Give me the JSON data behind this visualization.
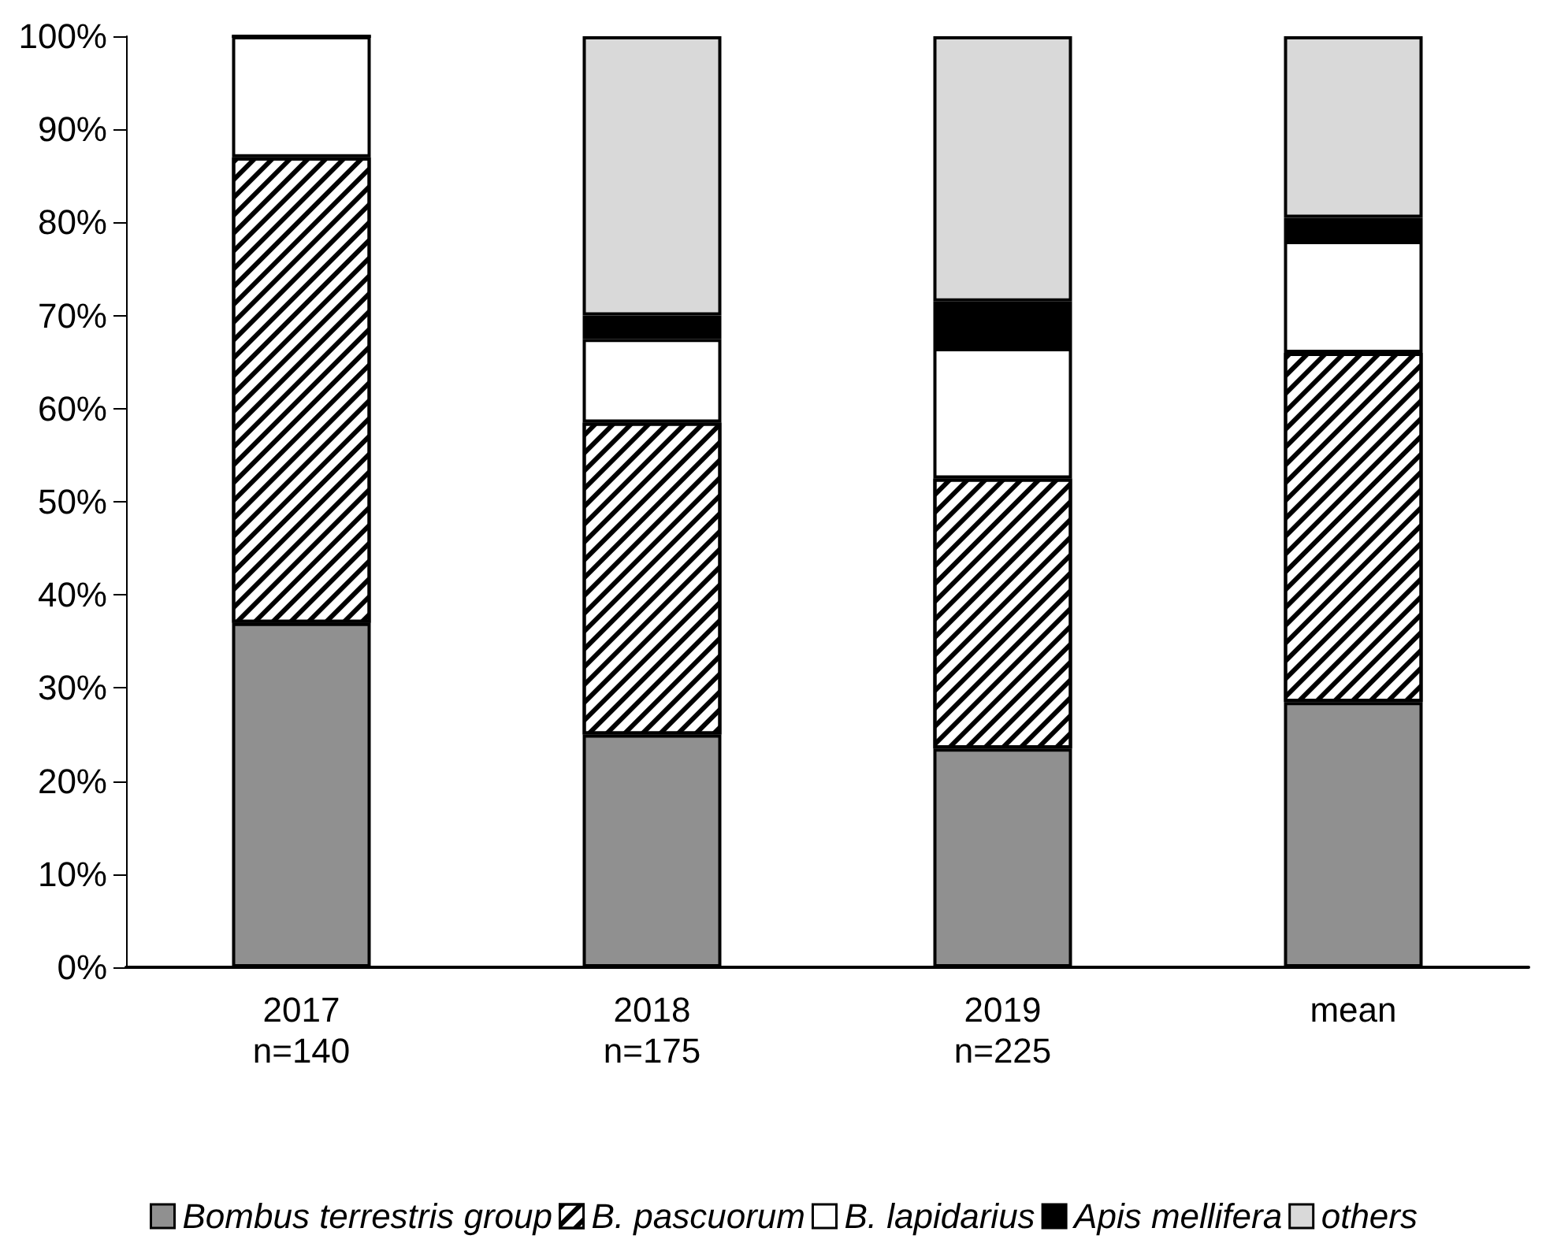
{
  "chart_data": {
    "type": "bar",
    "stacked": true,
    "categories": [
      "2017\nn=140",
      "2018\nn=175",
      "2019\nn=225",
      "mean"
    ],
    "series": [
      {
        "name": "Bombus terrestris group",
        "color": "#909090",
        "values": [
          37,
          25,
          23.5,
          28.5
        ]
      },
      {
        "name": "B. pascuorum",
        "color": "#ffffff",
        "values": [
          50,
          33.5,
          29,
          37.5
        ]
      },
      {
        "name": "B. lapidarius",
        "color": "#ffffff",
        "values": [
          13,
          9,
          14,
          12
        ]
      },
      {
        "name": "Apis mellifera",
        "color": "#000000",
        "values": [
          0,
          2.5,
          5,
          2.5
        ]
      },
      {
        "name": "others",
        "color": "#d9d9d9",
        "values": [
          0,
          30,
          28.5,
          19.5
        ]
      }
    ],
    "ylim": [
      0,
      100
    ],
    "yticks": [
      {
        "value": 0,
        "label": "0%"
      },
      {
        "value": 10,
        "label": "10%"
      },
      {
        "value": 20,
        "label": "20%"
      },
      {
        "value": 30,
        "label": "30%"
      },
      {
        "value": 40,
        "label": "40%"
      },
      {
        "value": 50,
        "label": "50%"
      },
      {
        "value": 60,
        "label": "60%"
      },
      {
        "value": 70,
        "label": "70%"
      },
      {
        "value": 80,
        "label": "80%"
      },
      {
        "value": 90,
        "label": "90%"
      },
      {
        "value": 100,
        "label": "100%"
      }
    ],
    "grid": false,
    "legend": "bottom"
  }
}
